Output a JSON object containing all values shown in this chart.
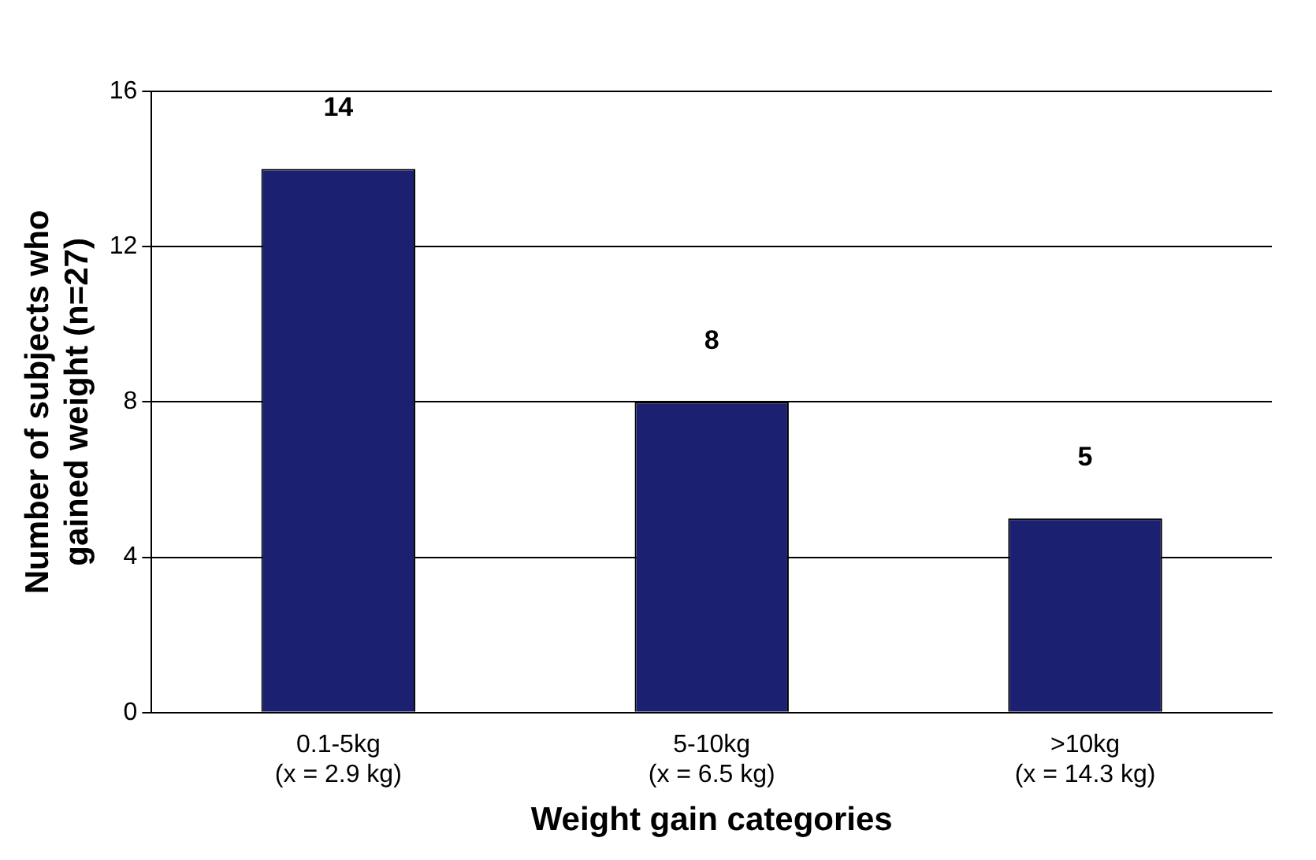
{
  "chart_data": {
    "type": "bar",
    "xlabel": "Weight gain categories",
    "ylabel": "Number of subjects who\ngained weight (n=27)",
    "categories": [
      "0.1-5kg\n(x = 2.9 kg)",
      "5-10kg\n(x = 6.5 kg)",
      ">10kg\n(x = 14.3 kg)"
    ],
    "values": [
      14,
      8,
      5
    ],
    "color": "#1b2170",
    "ylim": [
      0,
      16
    ],
    "yticks": [
      0,
      4,
      8,
      12,
      16
    ],
    "grid": "y",
    "data_labels": true
  }
}
